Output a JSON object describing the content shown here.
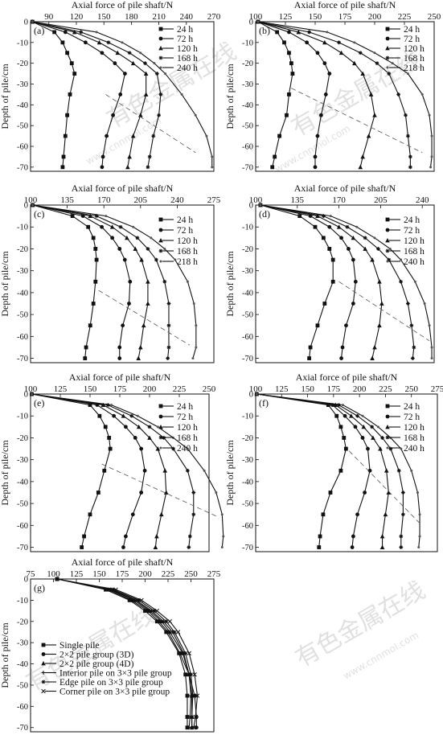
{
  "watermark": {
    "cn": "有色金属在线",
    "url": "www.cnnmol.com"
  },
  "chart_data": [
    {
      "type": "line",
      "label": "(a)",
      "xlabel": "Axial force of pile shaft/N",
      "ylabel": "Depth of pile/cm",
      "xlim": [
        70,
        270
      ],
      "xticks": [
        90,
        120,
        150,
        180,
        210,
        240,
        270
      ],
      "ylim": [
        -72,
        0
      ],
      "yticks": [
        0,
        -10,
        -20,
        -30,
        -40,
        -50,
        -60,
        -70
      ],
      "depth": [
        0,
        -5,
        -10,
        -15,
        -20,
        -25,
        -35,
        -45,
        -55,
        -65,
        -70
      ],
      "series": [
        {
          "name": "24 h",
          "marker": "square",
          "values": [
            72,
            96,
            105,
            110,
            115,
            118,
            113,
            110,
            108,
            106,
            105
          ]
        },
        {
          "name": "72 h",
          "marker": "circle",
          "values": [
            72,
            108,
            130,
            148,
            162,
            173,
            168,
            160,
            153,
            149,
            148
          ]
        },
        {
          "name": "120 h",
          "marker": "triangle",
          "values": [
            72,
            118,
            145,
            165,
            182,
            196,
            196,
            190,
            182,
            178,
            176
          ]
        },
        {
          "name": "168 h",
          "marker": "star",
          "values": [
            72,
            125,
            155,
            178,
            195,
            208,
            212,
            210,
            204,
            200,
            198
          ]
        },
        {
          "name": "240 h",
          "marker": "dot",
          "values": [
            72,
            142,
            170,
            190,
            205,
            217,
            235,
            250,
            262,
            268,
            268
          ]
        }
      ],
      "max_line": [
        [
          152,
          -35
        ],
        [
          250,
          -63
        ]
      ]
    },
    {
      "type": "line",
      "label": "(b)",
      "xlabel": "Axial force of pile shaft/N",
      "ylabel": "Depth of pile/cm",
      "xlim": [
        100,
        250
      ],
      "xticks": [
        100,
        125,
        150,
        175,
        200,
        225,
        250
      ],
      "ylim": [
        -72,
        0
      ],
      "yticks": [
        0,
        -10,
        -20,
        -30,
        -40,
        -50,
        -60,
        -70
      ],
      "depth": [
        0,
        -5,
        -10,
        -15,
        -20,
        -25,
        -35,
        -45,
        -55,
        -65,
        -70
      ],
      "series": [
        {
          "name": "24 h",
          "marker": "square",
          "values": [
            102,
            118,
            124,
            128,
            130,
            131,
            128,
            126,
            120,
            116,
            114
          ]
        },
        {
          "name": "72 h",
          "marker": "circle",
          "values": [
            102,
            128,
            143,
            152,
            158,
            162,
            159,
            155,
            152,
            150,
            150
          ]
        },
        {
          "name": "120 h",
          "marker": "triangle",
          "values": [
            102,
            136,
            158,
            172,
            183,
            190,
            197,
            200,
            195,
            190,
            188
          ]
        },
        {
          "name": "168 h",
          "marker": "star",
          "values": [
            102,
            145,
            170,
            188,
            202,
            212,
            220,
            226,
            228,
            230,
            230
          ]
        },
        {
          "name": "218 h",
          "marker": "dot",
          "values": [
            102,
            160,
            183,
            200,
            215,
            228,
            240,
            246,
            248,
            248,
            247
          ]
        }
      ],
      "max_line": [
        [
          130,
          -32
        ],
        [
          240,
          -63
        ]
      ]
    },
    {
      "type": "line",
      "label": "(c)",
      "xlabel": "Axial force of pile shaft/N",
      "ylabel": "Depth of pile/cm",
      "xlim": [
        100,
        275
      ],
      "xticks": [
        100,
        135,
        170,
        205,
        240,
        275
      ],
      "ylim": [
        -72,
        0
      ],
      "yticks": [
        0,
        -10,
        -20,
        -30,
        -40,
        -50,
        -60,
        -70
      ],
      "depth": [
        0,
        -5,
        -10,
        -15,
        -20,
        -25,
        -35,
        -45,
        -55,
        -65,
        -70
      ],
      "series": [
        {
          "name": "24 h",
          "marker": "square",
          "values": [
            102,
            140,
            155,
            160,
            162,
            163,
            162,
            160,
            157,
            153,
            152
          ]
        },
        {
          "name": "72 h",
          "marker": "circle",
          "values": [
            102,
            150,
            168,
            178,
            185,
            190,
            195,
            194,
            188,
            185,
            185
          ]
        },
        {
          "name": "120 h",
          "marker": "triangle",
          "values": [
            102,
            157,
            178,
            192,
            200,
            206,
            212,
            212,
            208,
            205,
            203
          ]
        },
        {
          "name": "168 h",
          "marker": "star",
          "values": [
            102,
            163,
            186,
            202,
            212,
            220,
            228,
            232,
            232,
            232,
            231
          ]
        },
        {
          "name": "218 h",
          "marker": "dot",
          "values": [
            102,
            172,
            198,
            215,
            228,
            238,
            250,
            256,
            258,
            258,
            255
          ]
        }
      ],
      "max_line": [
        [
          165,
          -39
        ],
        [
          252,
          -64
        ]
      ]
    },
    {
      "type": "line",
      "label": "(d)",
      "xlabel": "Axial force of pile shaft/N",
      "ylabel": "Depth of pile/cm",
      "xlim": [
        100,
        250
      ],
      "xticks": [
        100,
        135,
        170,
        205,
        240
      ],
      "ylim": [
        -72,
        0
      ],
      "yticks": [
        0,
        -10,
        -20,
        -30,
        -40,
        -50,
        -60,
        -70
      ],
      "depth": [
        0,
        -5,
        -10,
        -15,
        -20,
        -25,
        -35,
        -45,
        -55,
        -65,
        -70
      ],
      "series": [
        {
          "name": "24 h",
          "marker": "square",
          "values": [
            104,
            137,
            150,
            157,
            162,
            165,
            165,
            158,
            152,
            146,
            145
          ]
        },
        {
          "name": "72 h",
          "marker": "circle",
          "values": [
            104,
            146,
            162,
            172,
            178,
            182,
            184,
            182,
            176,
            173,
            172
          ]
        },
        {
          "name": "120 h",
          "marker": "triangle",
          "values": [
            104,
            152,
            170,
            182,
            192,
            198,
            204,
            206,
            204,
            200,
            198
          ]
        },
        {
          "name": "168 h",
          "marker": "star",
          "values": [
            104,
            157,
            177,
            192,
            203,
            212,
            222,
            228,
            231,
            233,
            232
          ]
        },
        {
          "name": "240 h",
          "marker": "dot",
          "values": [
            104,
            163,
            185,
            200,
            213,
            222,
            234,
            242,
            246,
            248,
            248
          ]
        }
      ],
      "max_line": [
        [
          170,
          -35
        ],
        [
          246,
          -62
        ]
      ]
    },
    {
      "type": "line",
      "label": "(e)",
      "xlabel": "Axial force of pile shaft/N",
      "ylabel": "Depth of pile/cm",
      "xlim": [
        100,
        250
      ],
      "xticks": [
        100,
        125,
        150,
        175,
        200,
        225,
        250
      ],
      "ylim": [
        -72,
        0
      ],
      "yticks": [
        0,
        -10,
        -20,
        -30,
        -40,
        -50,
        -60,
        -70
      ],
      "depth": [
        0,
        -5,
        -10,
        -15,
        -20,
        -25,
        -35,
        -45,
        -55,
        -65,
        -70
      ],
      "series": [
        {
          "name": "24 h",
          "marker": "square",
          "values": [
            101,
            150,
            158,
            163,
            166,
            167,
            162,
            157,
            150,
            145,
            143
          ]
        },
        {
          "name": "72 h",
          "marker": "circle",
          "values": [
            101,
            156,
            170,
            180,
            188,
            193,
            196,
            193,
            186,
            180,
            178
          ]
        },
        {
          "name": "120 h",
          "marker": "triangle",
          "values": [
            101,
            161,
            178,
            191,
            200,
            207,
            213,
            214,
            210,
            206,
            205
          ]
        },
        {
          "name": "168 h",
          "marker": "star",
          "values": [
            101,
            165,
            185,
            200,
            212,
            220,
            232,
            237,
            237,
            234,
            233
          ]
        },
        {
          "name": "240 h",
          "marker": "dot",
          "values": [
            101,
            168,
            190,
            207,
            220,
            232,
            246,
            256,
            261,
            262,
            261
          ]
        }
      ],
      "max_line": [
        [
          160,
          -32
        ],
        [
          257,
          -56
        ]
      ]
    },
    {
      "type": "line",
      "label": "(f)",
      "xlabel": "Axial force of pile shaft/N",
      "ylabel": "Depth of pile/cm",
      "xlim": [
        100,
        275
      ],
      "xticks": [
        100,
        125,
        150,
        175,
        200,
        225,
        250,
        275
      ],
      "ylim": [
        -72,
        0
      ],
      "yticks": [
        0,
        -10,
        -20,
        -30,
        -40,
        -50,
        -60,
        -70
      ],
      "depth": [
        0,
        -5,
        -10,
        -15,
        -20,
        -25,
        -35,
        -45,
        -55,
        -65,
        -70
      ],
      "series": [
        {
          "name": "24 h",
          "marker": "square",
          "values": [
            101,
            170,
            178,
            182,
            185,
            187,
            182,
            172,
            165,
            162,
            161
          ]
        },
        {
          "name": "72 h",
          "marker": "circle",
          "values": [
            101,
            174,
            186,
            196,
            203,
            208,
            210,
            205,
            198,
            194,
            193
          ]
        },
        {
          "name": "120 h",
          "marker": "triangle",
          "values": [
            101,
            177,
            192,
            204,
            213,
            220,
            226,
            228,
            225,
            222,
            222
          ]
        },
        {
          "name": "168 h",
          "marker": "star",
          "values": [
            101,
            180,
            198,
            212,
            222,
            230,
            238,
            242,
            242,
            240,
            240
          ]
        },
        {
          "name": "240 h",
          "marker": "dot",
          "values": [
            101,
            184,
            203,
            218,
            230,
            240,
            250,
            256,
            258,
            258,
            257
          ]
        }
      ],
      "max_line": [
        [
          190,
          -26
        ],
        [
          258,
          -59
        ]
      ]
    },
    {
      "type": "line",
      "label": "(g)",
      "xlabel": "Axial force of pile shaft/N",
      "ylabel": "Depth of pile/cm",
      "xlim": [
        75,
        275
      ],
      "xticks": [
        75,
        100,
        125,
        150,
        175,
        200,
        225,
        250,
        275
      ],
      "ylim": [
        -72,
        0
      ],
      "yticks": [
        0,
        -10,
        -20,
        -30,
        -40,
        -50,
        -60,
        -70
      ],
      "depth": [
        0,
        -5,
        -10,
        -15,
        -20,
        -25,
        -35,
        -45,
        -55,
        -65,
        -70
      ],
      "series": [
        {
          "name": "Single pile",
          "marker": "square",
          "values": [
            104,
            157,
            183,
            200,
            213,
            223,
            237,
            244,
            246,
            246,
            246
          ]
        },
        {
          "name": "2×2 pile group (3D)",
          "marker": "circle",
          "values": [
            104,
            160,
            185,
            203,
            215,
            225,
            238,
            248,
            254,
            256,
            256
          ]
        },
        {
          "name": "2×2 pile group (4D)",
          "marker": "triangle",
          "values": [
            104,
            162,
            188,
            205,
            218,
            227,
            241,
            248,
            251,
            251,
            251
          ]
        },
        {
          "name": "Interior pile on 3×3 pile group",
          "marker": "plus",
          "values": [
            104,
            163,
            190,
            207,
            220,
            230,
            242,
            248,
            250,
            249,
            248
          ]
        },
        {
          "name": "Edge pile on 3×3 pile group",
          "marker": "star",
          "values": [
            104,
            165,
            193,
            210,
            223,
            232,
            244,
            250,
            252,
            251,
            251
          ]
        },
        {
          "name": "Corner pile on 3×3 pile group",
          "marker": "cross",
          "values": [
            104,
            168,
            196,
            213,
            227,
            236,
            248,
            254,
            257,
            255,
            253
          ]
        }
      ]
    }
  ]
}
